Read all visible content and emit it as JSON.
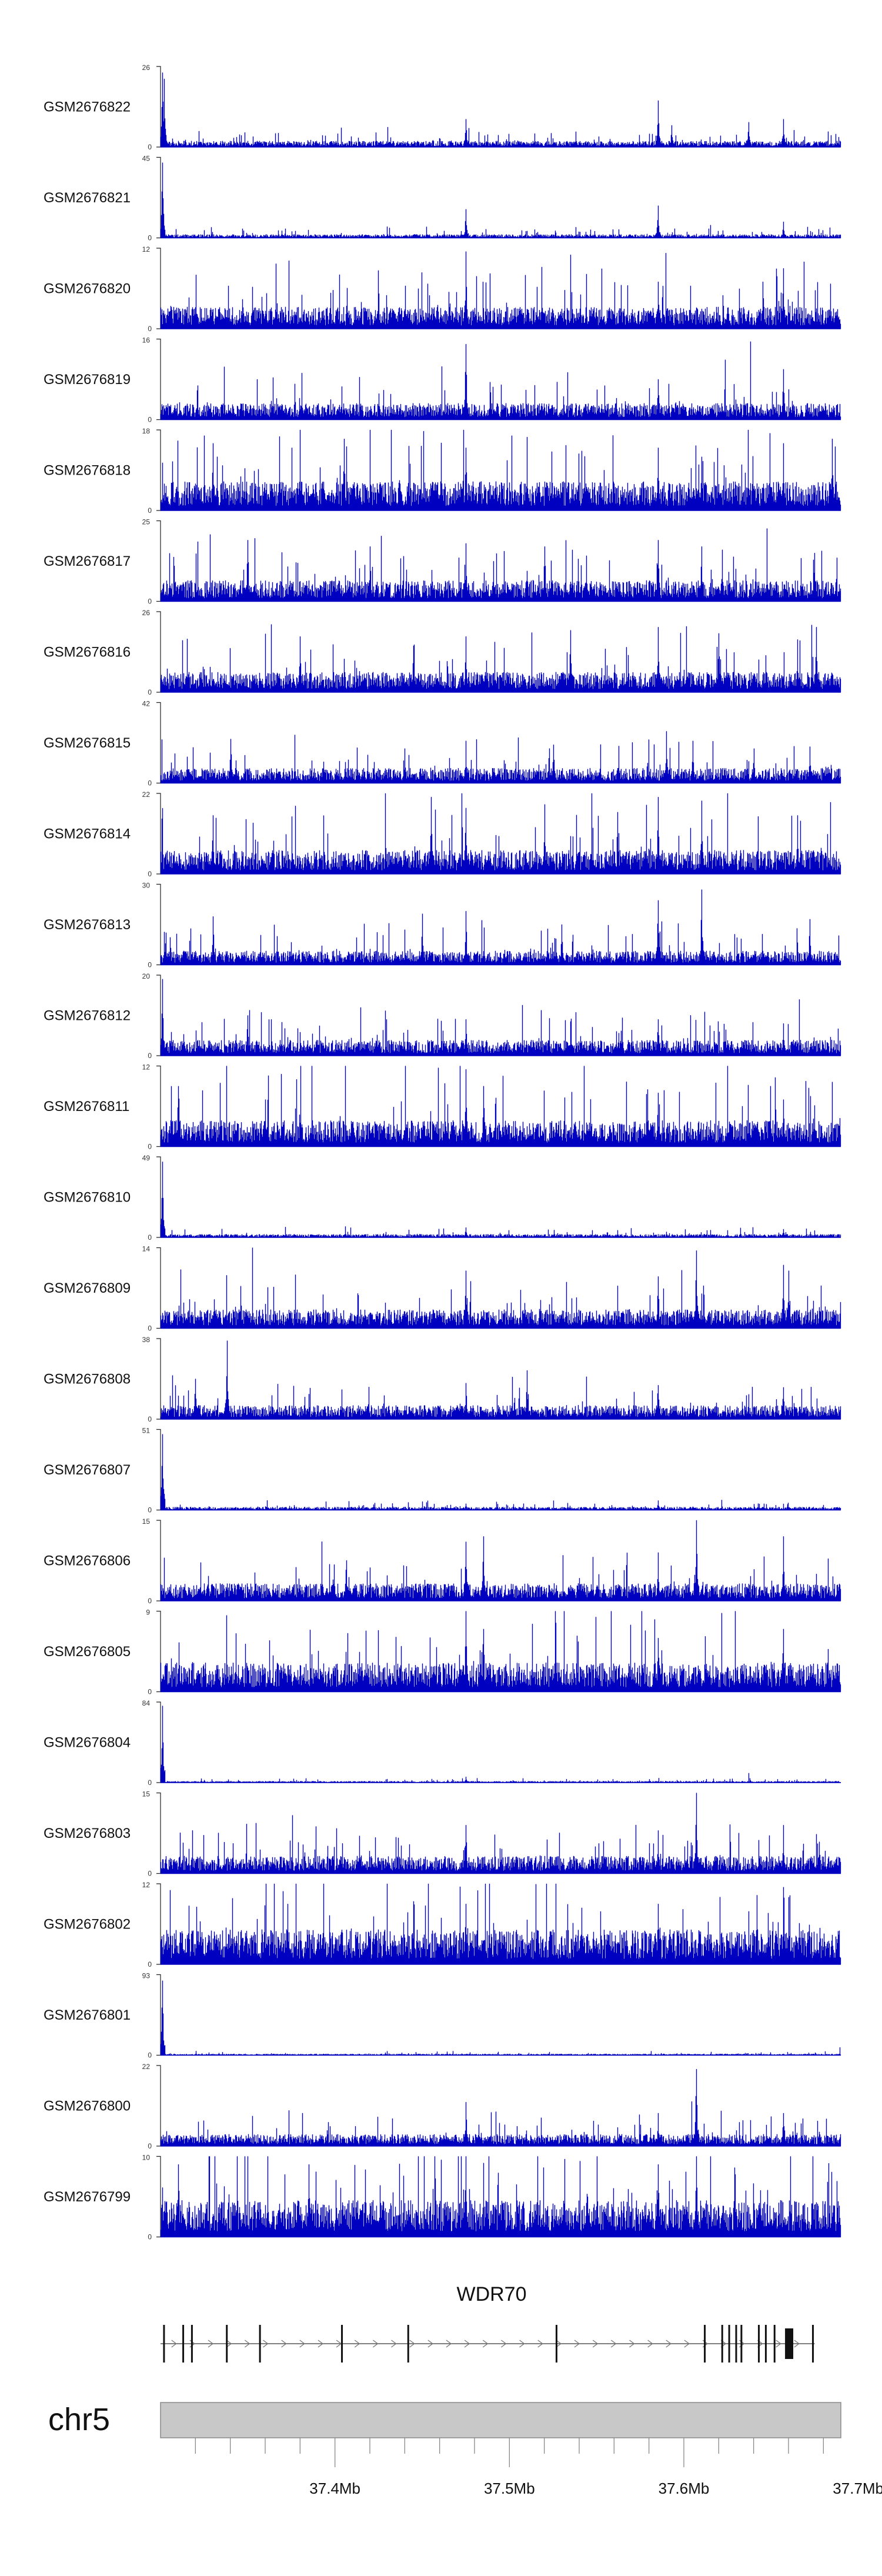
{
  "chart_data": {
    "type": "area",
    "xlabel": "",
    "ylabel": "",
    "colors": {
      "signal": "#0000c0",
      "axis": "#222222",
      "gene": "#111111",
      "ideogram_fill": "#c8c8c8",
      "ideogram_stroke": "#8a8a8a"
    },
    "x_range_mb": [
      37.3,
      37.69
    ],
    "grid": false,
    "legend": "none",
    "tracks": [
      {
        "name": "GSM2676822",
        "ymax": 26,
        "baseline": 1.5,
        "spikes": [
          [
            37.301,
            24
          ],
          [
            37.302,
            22
          ],
          [
            37.475,
            9
          ],
          [
            37.585,
            15
          ],
          [
            37.593,
            7
          ],
          [
            37.637,
            8
          ],
          [
            37.657,
            9
          ]
        ]
      },
      {
        "name": "GSM2676821",
        "ymax": 45,
        "baseline": 1.5,
        "spikes": [
          [
            37.301,
            42
          ],
          [
            37.475,
            16
          ],
          [
            37.585,
            18
          ],
          [
            37.657,
            9
          ]
        ]
      },
      {
        "name": "GSM2676820",
        "ymax": 12,
        "baseline": 2.5,
        "spikes": [
          [
            37.475,
            11.5
          ],
          [
            37.585,
            7
          ],
          [
            37.645,
            7
          ],
          [
            37.657,
            9
          ]
        ]
      },
      {
        "name": "GSM2676819",
        "ymax": 16,
        "baseline": 2.5,
        "spikes": [
          [
            37.475,
            15
          ],
          [
            37.585,
            8
          ],
          [
            37.657,
            10
          ]
        ]
      },
      {
        "name": "GSM2676818",
        "ymax": 18,
        "baseline": 5,
        "spikes": [
          [
            37.33,
            15
          ],
          [
            37.405,
            16
          ],
          [
            37.475,
            14
          ],
          [
            37.51,
            13
          ],
          [
            37.585,
            14
          ],
          [
            37.61,
            12
          ],
          [
            37.657,
            15
          ],
          [
            37.685,
            16
          ]
        ]
      },
      {
        "name": "GSM2676817",
        "ymax": 25,
        "baseline": 5,
        "spikes": [
          [
            37.35,
            19
          ],
          [
            37.42,
            17
          ],
          [
            37.475,
            18
          ],
          [
            37.52,
            17
          ],
          [
            37.585,
            19
          ],
          [
            37.61,
            17
          ],
          [
            37.622,
            16
          ],
          [
            37.675,
            15
          ]
        ]
      },
      {
        "name": "GSM2676816",
        "ymax": 26,
        "baseline": 5,
        "spikes": [
          [
            37.38,
            18
          ],
          [
            37.445,
            15
          ],
          [
            37.475,
            18
          ],
          [
            37.535,
            20
          ],
          [
            37.585,
            21
          ],
          [
            37.62,
            19
          ],
          [
            37.665,
            17
          ],
          [
            37.676,
            21
          ]
        ]
      },
      {
        "name": "GSM2676815",
        "ymax": 42,
        "baseline": 6,
        "spikes": [
          [
            37.34,
            23
          ],
          [
            37.44,
            18
          ],
          [
            37.475,
            22
          ],
          [
            37.525,
            20
          ],
          [
            37.59,
            27
          ],
          [
            37.605,
            22
          ],
          [
            37.64,
            18
          ],
          [
            37.672,
            19
          ]
        ]
      },
      {
        "name": "GSM2676814",
        "ymax": 22,
        "baseline": 5,
        "spikes": [
          [
            37.33,
            16
          ],
          [
            37.455,
            21
          ],
          [
            37.475,
            18
          ],
          [
            37.52,
            19
          ],
          [
            37.585,
            21
          ],
          [
            37.61,
            20
          ],
          [
            37.665,
            16
          ]
        ]
      },
      {
        "name": "GSM2676813",
        "ymax": 30,
        "baseline": 4,
        "spikes": [
          [
            37.33,
            18
          ],
          [
            37.45,
            19
          ],
          [
            37.475,
            20
          ],
          [
            37.53,
            15
          ],
          [
            37.585,
            24
          ],
          [
            37.61,
            28
          ],
          [
            37.672,
            17
          ]
        ]
      },
      {
        "name": "GSM2676812",
        "ymax": 20,
        "baseline": 3,
        "spikes": [
          [
            37.301,
            19
          ],
          [
            37.35,
            10
          ],
          [
            37.475,
            9
          ],
          [
            37.585,
            9
          ],
          [
            37.657,
            8
          ]
        ]
      },
      {
        "name": "GSM2676811",
        "ymax": 12,
        "baseline": 3,
        "spikes": [
          [
            37.31,
            9
          ],
          [
            37.36,
            7
          ],
          [
            37.475,
            11.5
          ],
          [
            37.485,
            9
          ],
          [
            37.585,
            8
          ],
          [
            37.657,
            7
          ]
        ]
      },
      {
        "name": "GSM2676810",
        "ymax": 49,
        "baseline": 1.5,
        "spikes": [
          [
            37.301,
            46
          ],
          [
            37.475,
            6
          ],
          [
            37.657,
            5
          ]
        ]
      },
      {
        "name": "GSM2676809",
        "ymax": 14,
        "baseline": 2.5,
        "spikes": [
          [
            37.475,
            10
          ],
          [
            37.585,
            9
          ],
          [
            37.607,
            13.5
          ],
          [
            37.657,
            11
          ],
          [
            37.66,
            10
          ]
        ]
      },
      {
        "name": "GSM2676808",
        "ymax": 38,
        "baseline": 5,
        "spikes": [
          [
            37.338,
            37
          ],
          [
            37.32,
            19
          ],
          [
            37.475,
            17
          ],
          [
            37.51,
            23
          ],
          [
            37.585,
            16
          ],
          [
            37.657,
            15
          ]
        ]
      },
      {
        "name": "GSM2676807",
        "ymax": 51,
        "baseline": 1.5,
        "spikes": [
          [
            37.301,
            48
          ],
          [
            37.475,
            4
          ],
          [
            37.585,
            6
          ]
        ]
      },
      {
        "name": "GSM2676806",
        "ymax": 15,
        "baseline": 2.5,
        "spikes": [
          [
            37.475,
            11
          ],
          [
            37.485,
            12
          ],
          [
            37.585,
            9
          ],
          [
            37.607,
            15
          ],
          [
            37.657,
            12
          ]
        ]
      },
      {
        "name": "GSM2676805",
        "ymax": 9,
        "baseline": 2.5,
        "spikes": [
          [
            37.475,
            9
          ],
          [
            37.485,
            7
          ],
          [
            37.585,
            6
          ],
          [
            37.657,
            7
          ]
        ]
      },
      {
        "name": "GSM2676804",
        "ymax": 84,
        "baseline": 1.2,
        "spikes": [
          [
            37.301,
            80
          ],
          [
            37.475,
            6
          ]
        ]
      },
      {
        "name": "GSM2676803",
        "ymax": 15,
        "baseline": 2.5,
        "spikes": [
          [
            37.607,
            15
          ],
          [
            37.475,
            9
          ],
          [
            37.585,
            8
          ],
          [
            37.657,
            9
          ]
        ]
      },
      {
        "name": "GSM2676802",
        "ymax": 12,
        "baseline": 4,
        "spikes": [
          [
            37.475,
            9
          ],
          [
            37.585,
            9
          ],
          [
            37.657,
            11.5
          ],
          [
            37.66,
            10
          ]
        ]
      },
      {
        "name": "GSM2676801",
        "ymax": 93,
        "baseline": 1.2,
        "spikes": [
          [
            37.301,
            86
          ]
        ]
      },
      {
        "name": "GSM2676800",
        "ymax": 22,
        "baseline": 2.5,
        "spikes": [
          [
            37.475,
            12
          ],
          [
            37.585,
            9
          ],
          [
            37.607,
            21
          ],
          [
            37.657,
            9
          ]
        ]
      },
      {
        "name": "GSM2676799",
        "ymax": 10,
        "baseline": 3.5,
        "spikes": [
          [
            37.31,
            9
          ],
          [
            37.385,
            9
          ],
          [
            37.475,
            10
          ],
          [
            37.585,
            9
          ],
          [
            37.607,
            10
          ]
        ]
      }
    ],
    "gene": {
      "name": "WDR70",
      "start_mb": 37.3,
      "end_mb": 37.675,
      "strand": "+",
      "exons_mb": [
        37.302,
        37.313,
        37.318,
        37.338,
        37.357,
        37.404,
        37.442,
        37.527,
        37.612,
        37.622,
        37.626,
        37.63,
        37.633,
        37.643,
        37.647,
        37.652,
        37.674
      ]
    },
    "ideogram": {
      "chrom": "chr5",
      "ticks_mb": [
        37.4,
        37.5,
        37.6,
        37.7
      ],
      "tick_labels": [
        "37.4Mb",
        "37.5Mb",
        "37.6Mb",
        "37.7Mb"
      ]
    }
  }
}
